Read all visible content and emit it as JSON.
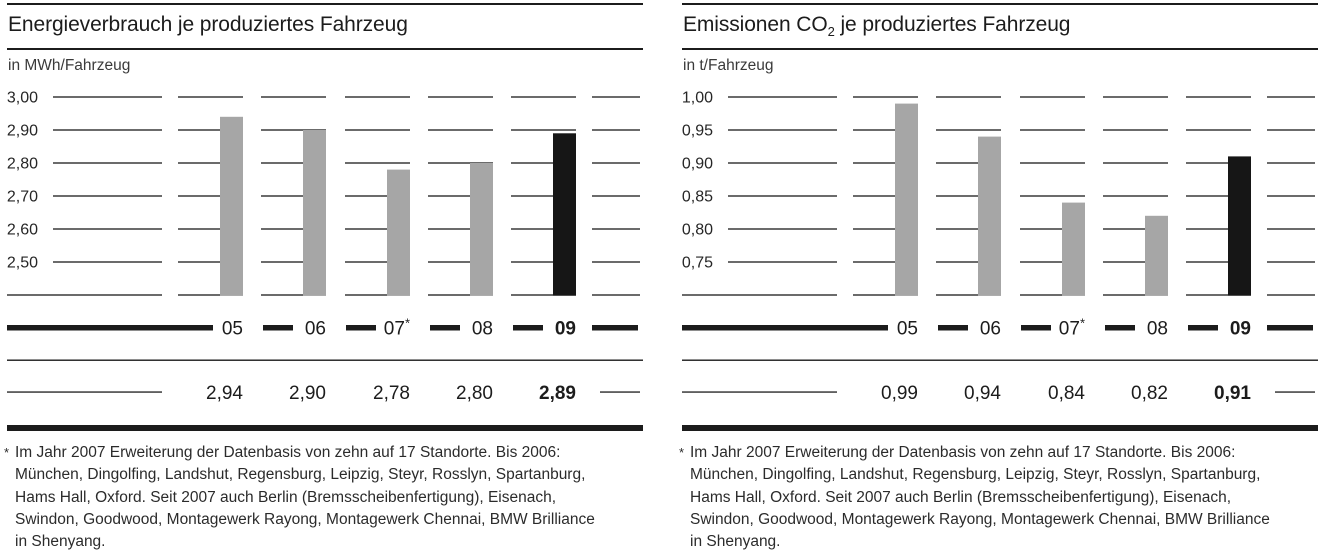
{
  "colors": {
    "ink": "#1c1c1c",
    "bar_gray": "#a6a6a6",
    "bar_emphasis": "#161616",
    "text": "#262626"
  },
  "chart_data": [
    {
      "type": "bar",
      "title_pre": "Energieverbrauch je produziertes Fahrzeug",
      "title_subscript": "",
      "title_post": "",
      "unit_label": "in MWh/Fahrzeug",
      "categories": [
        "05",
        "06",
        "07",
        "08",
        "09"
      ],
      "category_superscripts": [
        "",
        "",
        "*",
        "",
        ""
      ],
      "values": [
        2.94,
        2.9,
        2.78,
        2.8,
        2.89
      ],
      "value_labels": [
        "2,94",
        "2,90",
        "2,78",
        "2,80",
        "2,89"
      ],
      "emphasis_index": 4,
      "ymax": 3.0,
      "tick_step": 0.1,
      "baseline_value": 2.4,
      "ticks": [
        {
          "value": 3.0,
          "label": "3,00"
        },
        {
          "value": 2.9,
          "label": "2,90"
        },
        {
          "value": 2.8,
          "label": "2,80"
        },
        {
          "value": 2.7,
          "label": "2,70"
        },
        {
          "value": 2.6,
          "label": "2,60"
        },
        {
          "value": 2.5,
          "label": "2,50"
        }
      ],
      "footnote_marker": "*",
      "footnote_lines": [
        "Im Jahr 2007 Erweiterung der Datenbasis von zehn auf 17 Standorte. Bis 2006:",
        "München, Dingolfing, Landshut, Regensburg, Leipzig, Steyr, Rosslyn, Spartanburg,",
        "Hams Hall, Oxford. Seit 2007 auch Berlin (Bremsscheibenfertigung), Eisenach,",
        "Swindon, Goodwood, Montagewerk Rayong, Montagewerk Chennai, BMW Brilliance",
        "in Shenyang."
      ]
    },
    {
      "type": "bar",
      "title_pre": "Emissionen CO",
      "title_subscript": "2",
      "title_post": " je produziertes Fahrzeug",
      "unit_label": "in t/Fahrzeug",
      "categories": [
        "05",
        "06",
        "07",
        "08",
        "09"
      ],
      "category_superscripts": [
        "",
        "",
        "*",
        "",
        ""
      ],
      "values": [
        0.99,
        0.94,
        0.84,
        0.82,
        0.91
      ],
      "value_labels": [
        "0,99",
        "0,94",
        "0,84",
        "0,82",
        "0,91"
      ],
      "emphasis_index": 4,
      "ymax": 1.0,
      "tick_step": 0.05,
      "baseline_value": 0.7,
      "ticks": [
        {
          "value": 1.0,
          "label": "1,00"
        },
        {
          "value": 0.95,
          "label": "0,95"
        },
        {
          "value": 0.9,
          "label": "0,90"
        },
        {
          "value": 0.85,
          "label": "0,85"
        },
        {
          "value": 0.8,
          "label": "0,80"
        },
        {
          "value": 0.75,
          "label": "0,75"
        }
      ],
      "footnote_marker": "*",
      "footnote_lines": [
        "Im Jahr 2007 Erweiterung der Datenbasis von zehn auf 17 Standorte. Bis 2006:",
        "München, Dingolfing, Landshut, Regensburg, Leipzig, Steyr, Rosslyn, Spartanburg,",
        "Hams Hall, Oxford. Seit 2007 auch Berlin (Bremsscheibenfertigung), Eisenach,",
        "Swindon, Goodwood, Montagewerk Rayong, Montagewerk Chennai, BMW Brilliance",
        "in Shenyang."
      ]
    }
  ]
}
